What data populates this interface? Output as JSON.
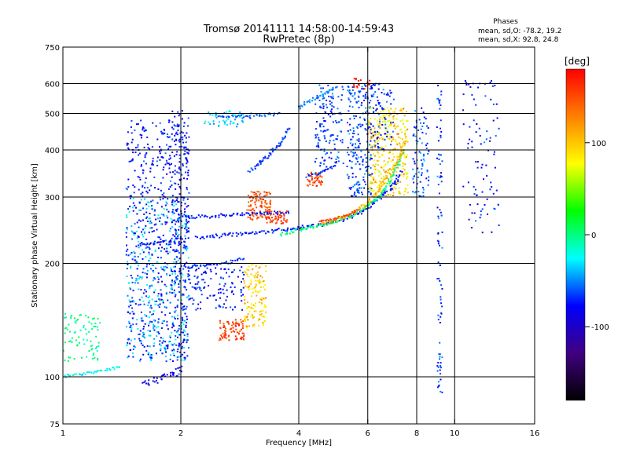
{
  "chart_data": {
    "type": "scatter",
    "title": "Tromsø 20141111 14:58:00-14:59:43",
    "subtitle": "RwPretec (8p)",
    "xlabel": "Frequency [MHz]",
    "ylabel": "Stationary phase Virtual Height [km]",
    "x_scale": "log",
    "y_scale": "log",
    "xlim": [
      1,
      16
    ],
    "ylim": [
      75,
      750
    ],
    "x_ticks": [
      1,
      2,
      4,
      6,
      8,
      10,
      16
    ],
    "y_ticks": [
      75,
      100,
      200,
      300,
      400,
      500,
      600,
      750
    ],
    "x_grid": [
      2,
      4,
      6,
      8,
      10
    ],
    "y_grid": [
      100,
      200,
      300,
      400,
      500,
      600
    ],
    "grid": true,
    "phase_box": {
      "heading": "Phases",
      "line_o": "mean, sd,O: -78.2, 19.2",
      "line_x": "mean, sd,X:  92.8, 24.8"
    },
    "colorbar": {
      "label": "[deg]",
      "range": [
        -180,
        180
      ],
      "ticks": [
        100,
        0,
        -100
      ],
      "colors": [
        "#ff0000",
        "#ff8000",
        "#ffff00",
        "#00ff00",
        "#00ffff",
        "#0000ff",
        "#400080",
        "#000000"
      ]
    },
    "traces": [
      {
        "points": [
          [
            2.2,
            235
          ],
          [
            2.6,
            238
          ],
          [
            3.0,
            240
          ],
          [
            3.5,
            244
          ],
          [
            4.0,
            248
          ],
          [
            4.6,
            254
          ],
          [
            5.2,
            262
          ],
          [
            5.8,
            275
          ],
          [
            6.2,
            290
          ],
          [
            6.6,
            305
          ],
          [
            7.0,
            325
          ],
          [
            7.3,
            350
          ]
        ],
        "phase": -95,
        "spread": 0.012
      },
      {
        "points": [
          [
            3.6,
            238
          ],
          [
            4.2,
            248
          ],
          [
            4.8,
            256
          ],
          [
            5.4,
            266
          ],
          [
            5.9,
            280
          ],
          [
            6.4,
            300
          ],
          [
            6.8,
            330
          ],
          [
            7.2,
            370
          ],
          [
            7.4,
            400
          ]
        ],
        "phase": -20,
        "spread": 0.01
      },
      {
        "points": [
          [
            4.6,
            255
          ],
          [
            5.2,
            265
          ],
          [
            5.8,
            282
          ],
          [
            6.2,
            300
          ],
          [
            6.6,
            330
          ],
          [
            7.0,
            360
          ],
          [
            7.3,
            395
          ],
          [
            7.5,
            430
          ]
        ],
        "phase": 110,
        "spread": 0.012
      },
      {
        "points": [
          [
            4.5,
            258
          ],
          [
            4.9,
            262
          ],
          [
            5.3,
            268
          ],
          [
            5.7,
            278
          ]
        ],
        "phase": 150,
        "spread": 0.008
      },
      {
        "points": [
          [
            1.6,
            95
          ],
          [
            1.8,
            100
          ],
          [
            2.0,
            105
          ]
        ],
        "phase": -110,
        "spread": 0.02
      },
      {
        "points": [
          [
            1.0,
            100
          ],
          [
            1.2,
            103
          ],
          [
            1.4,
            106
          ]
        ],
        "phase": -40,
        "spread": 0.008
      },
      {
        "points": [
          [
            1.55,
            225
          ],
          [
            1.8,
            228
          ],
          [
            2.1,
            232
          ]
        ],
        "phase": -100,
        "spread": 0.015
      },
      {
        "points": [
          [
            2.0,
            265
          ],
          [
            2.6,
            268
          ],
          [
            3.2,
            272
          ],
          [
            3.8,
            272
          ]
        ],
        "phase": -95,
        "spread": 0.01
      },
      {
        "points": [
          [
            2.0,
            195
          ],
          [
            2.4,
            198
          ],
          [
            2.9,
            205
          ]
        ],
        "phase": -90,
        "spread": 0.01
      },
      {
        "points": [
          [
            2.5,
            490
          ],
          [
            3.0,
            492
          ],
          [
            3.6,
            500
          ]
        ],
        "phase": -80,
        "spread": 0.01
      },
      {
        "points": [
          [
            4.0,
            520
          ],
          [
            4.6,
            560
          ],
          [
            5.0,
            590
          ]
        ],
        "phase": -70,
        "spread": 0.01
      },
      {
        "points": [
          [
            3.0,
            350
          ],
          [
            3.3,
            380
          ],
          [
            3.6,
            420
          ],
          [
            3.8,
            460
          ]
        ],
        "phase": -85,
        "spread": 0.012
      },
      {
        "points": [
          [
            4.2,
            340
          ],
          [
            4.6,
            350
          ],
          [
            5.0,
            365
          ]
        ],
        "phase": -90,
        "spread": 0.01
      }
    ],
    "clusters": [
      {
        "x": [
          1.45,
          2.1
        ],
        "y": [
          110,
          480
        ],
        "n": 650,
        "phase": -95,
        "spread": 25
      },
      {
        "x": [
          1.45,
          2.1
        ],
        "y": [
          110,
          300
        ],
        "n": 250,
        "phase": -45,
        "spread": 20
      },
      {
        "x": [
          1.9,
          2.1
        ],
        "y": [
          100,
          510
        ],
        "n": 160,
        "phase": -100,
        "spread": 20
      },
      {
        "x": [
          1.0,
          1.25
        ],
        "y": [
          110,
          150
        ],
        "n": 80,
        "phase": -20,
        "spread": 15
      },
      {
        "x": [
          2.1,
          2.9
        ],
        "y": [
          150,
          200
        ],
        "n": 120,
        "phase": -95,
        "spread": 20
      },
      {
        "x": [
          2.5,
          2.9
        ],
        "y": [
          125,
          142
        ],
        "n": 80,
        "phase": 150,
        "spread": 20
      },
      {
        "x": [
          2.9,
          3.3
        ],
        "y": [
          135,
          200
        ],
        "n": 140,
        "phase": 100,
        "spread": 20
      },
      {
        "x": [
          2.95,
          3.4
        ],
        "y": [
          260,
          310
        ],
        "n": 110,
        "phase": 140,
        "spread": 25
      },
      {
        "x": [
          3.3,
          3.75
        ],
        "y": [
          255,
          275
        ],
        "n": 50,
        "phase": 155,
        "spread": 15
      },
      {
        "x": [
          4.2,
          4.6
        ],
        "y": [
          320,
          350
        ],
        "n": 50,
        "phase": 145,
        "spread": 20
      },
      {
        "x": [
          4.4,
          5.2
        ],
        "y": [
          360,
          600
        ],
        "n": 140,
        "phase": -85,
        "spread": 20
      },
      {
        "x": [
          5.3,
          6.2
        ],
        "y": [
          300,
          600
        ],
        "n": 220,
        "phase": -85,
        "spread": 25
      },
      {
        "x": [
          6.0,
          7.6
        ],
        "y": [
          300,
          520
        ],
        "n": 320,
        "phase": 95,
        "spread": 30
      },
      {
        "x": [
          6.1,
          7.0
        ],
        "y": [
          400,
          600
        ],
        "n": 80,
        "phase": -90,
        "spread": 25
      },
      {
        "x": [
          7.8,
          8.6
        ],
        "y": [
          300,
          520
        ],
        "n": 80,
        "phase": -80,
        "spread": 30
      },
      {
        "x": [
          9.0,
          9.3
        ],
        "y": [
          90,
          600
        ],
        "n": 90,
        "phase": -90,
        "spread": 30
      },
      {
        "x": [
          10.5,
          13.0
        ],
        "y": [
          240,
          620
        ],
        "n": 90,
        "phase": -95,
        "spread": 30
      },
      {
        "x": [
          5.5,
          6.1
        ],
        "y": [
          580,
          620
        ],
        "n": 20,
        "phase": 160,
        "spread": 20
      },
      {
        "x": [
          2.3,
          2.9
        ],
        "y": [
          460,
          510
        ],
        "n": 50,
        "phase": -50,
        "spread": 25
      }
    ]
  }
}
